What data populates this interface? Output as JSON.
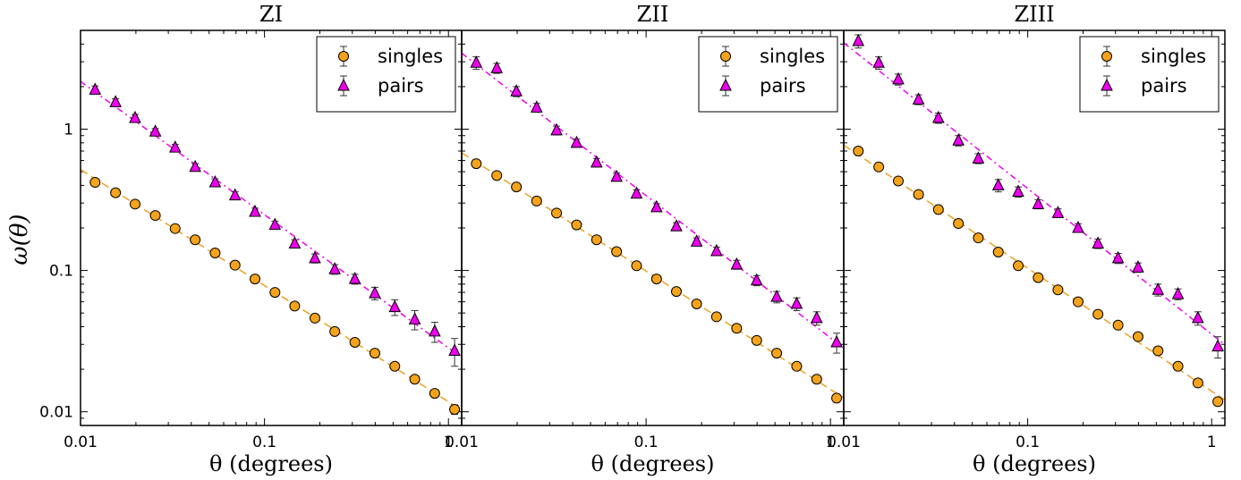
{
  "figure": {
    "ylabel": "ω(θ)",
    "xlabel": "θ (degrees)"
  },
  "colors": {
    "singles_fill": "#f5a31a",
    "pairs_fill": "#ee00ee",
    "singles_line": "#f0a020",
    "pairs_line": "#ee00ee"
  },
  "chart_data": [
    {
      "type": "scatter",
      "title": "ZI",
      "xlabel": "θ (degrees)",
      "ylabel": "ω(θ)",
      "xscale": "log",
      "yscale": "log",
      "xlim": [
        0.01,
        1.18
      ],
      "ylim": [
        0.008,
        5.0
      ],
      "xticks": [
        0.01,
        0.1,
        1
      ],
      "xtick_labels": [
        "0.01",
        "0.1",
        "1"
      ],
      "yticks": [
        0.01,
        0.1,
        1
      ],
      "ytick_labels": [
        "0.01",
        "0.1",
        "1"
      ],
      "legend": "top-right",
      "series": [
        {
          "name": "singles",
          "marker": "circle",
          "x": [
            0.012,
            0.0155,
            0.0198,
            0.0255,
            0.0327,
            0.042,
            0.0539,
            0.0692,
            0.0888,
            0.114,
            0.146,
            0.188,
            0.241,
            0.31,
            0.398,
            0.511,
            0.656,
            0.842,
            1.08
          ],
          "y": [
            0.42,
            0.355,
            0.295,
            0.245,
            0.198,
            0.165,
            0.133,
            0.109,
            0.087,
            0.07,
            0.056,
            0.046,
            0.037,
            0.031,
            0.026,
            0.021,
            0.017,
            0.0135,
            0.0104
          ],
          "yerr": [
            0.01,
            0.008,
            0.006,
            0.005,
            0.004,
            0.003,
            0.003,
            0.002,
            0.002,
            0.0015,
            0.0012,
            0.001,
            0.0008,
            0.0007,
            0.0006,
            0.0005,
            0.0005,
            0.0006,
            0.0008
          ]
        },
        {
          "name": "pairs",
          "marker": "triangle",
          "x": [
            0.012,
            0.0155,
            0.0198,
            0.0255,
            0.0327,
            0.042,
            0.0539,
            0.0692,
            0.0888,
            0.114,
            0.146,
            0.188,
            0.241,
            0.31,
            0.398,
            0.511,
            0.656,
            0.842,
            1.08
          ],
          "y": [
            1.9,
            1.55,
            1.2,
            0.96,
            0.74,
            0.54,
            0.42,
            0.34,
            0.26,
            0.21,
            0.155,
            0.122,
            0.102,
            0.087,
            0.069,
            0.055,
            0.045,
            0.037,
            0.027
          ],
          "yerr": [
            0.12,
            0.09,
            0.07,
            0.05,
            0.04,
            0.03,
            0.025,
            0.02,
            0.016,
            0.013,
            0.01,
            0.009,
            0.008,
            0.007,
            0.007,
            0.007,
            0.007,
            0.006,
            0.006
          ]
        }
      ]
    },
    {
      "type": "scatter",
      "title": "ZII",
      "xlabel": "θ (degrees)",
      "xscale": "log",
      "yscale": "log",
      "xlim": [
        0.01,
        1.18
      ],
      "ylim": [
        0.008,
        5.0
      ],
      "xticks": [
        0.01,
        0.1,
        1
      ],
      "xtick_labels": [
        "0.01",
        "0.1",
        "1"
      ],
      "legend": "top-right",
      "series": [
        {
          "name": "singles",
          "marker": "circle",
          "x": [
            0.012,
            0.0155,
            0.0198,
            0.0255,
            0.0327,
            0.042,
            0.0539,
            0.0692,
            0.0888,
            0.114,
            0.146,
            0.188,
            0.241,
            0.31,
            0.398,
            0.511,
            0.656,
            0.842,
            1.08
          ],
          "y": [
            0.57,
            0.47,
            0.39,
            0.31,
            0.255,
            0.21,
            0.165,
            0.136,
            0.108,
            0.087,
            0.071,
            0.058,
            0.047,
            0.039,
            0.032,
            0.026,
            0.021,
            0.017,
            0.0125
          ],
          "yerr": [
            0.012,
            0.01,
            0.008,
            0.006,
            0.005,
            0.004,
            0.003,
            0.003,
            0.002,
            0.0018,
            0.0015,
            0.0012,
            0.001,
            0.0008,
            0.0007,
            0.0006,
            0.0005,
            0.0006,
            0.0008
          ]
        },
        {
          "name": "pairs",
          "marker": "triangle",
          "x": [
            0.012,
            0.0155,
            0.0198,
            0.0255,
            0.0327,
            0.042,
            0.0539,
            0.0692,
            0.0888,
            0.114,
            0.146,
            0.188,
            0.241,
            0.31,
            0.398,
            0.511,
            0.656,
            0.842,
            1.08
          ],
          "y": [
            2.95,
            2.7,
            1.85,
            1.42,
            0.98,
            0.8,
            0.58,
            0.46,
            0.35,
            0.28,
            0.205,
            0.16,
            0.137,
            0.11,
            0.085,
            0.065,
            0.058,
            0.046,
            0.031
          ],
          "yerr": [
            0.3,
            0.22,
            0.15,
            0.1,
            0.07,
            0.05,
            0.04,
            0.03,
            0.022,
            0.017,
            0.013,
            0.01,
            0.009,
            0.008,
            0.007,
            0.006,
            0.006,
            0.005,
            0.005
          ]
        }
      ]
    },
    {
      "type": "scatter",
      "title": "ZIII",
      "xlabel": "θ (degrees)",
      "xscale": "log",
      "yscale": "log",
      "xlim": [
        0.01,
        1.18
      ],
      "ylim": [
        0.008,
        5.0
      ],
      "xticks": [
        0.01,
        0.1,
        1
      ],
      "xtick_labels": [
        "0.01",
        "0.1",
        "1"
      ],
      "legend": "top-right",
      "series": [
        {
          "name": "singles",
          "marker": "circle",
          "x": [
            0.012,
            0.0155,
            0.0198,
            0.0255,
            0.0327,
            0.042,
            0.0539,
            0.0692,
            0.0888,
            0.114,
            0.146,
            0.188,
            0.241,
            0.31,
            0.398,
            0.511,
            0.656,
            0.842,
            1.08
          ],
          "y": [
            0.7,
            0.54,
            0.43,
            0.345,
            0.27,
            0.215,
            0.17,
            0.135,
            0.108,
            0.089,
            0.073,
            0.06,
            0.049,
            0.041,
            0.034,
            0.027,
            0.021,
            0.016,
            0.0118
          ],
          "yerr": [
            0.015,
            0.012,
            0.01,
            0.008,
            0.006,
            0.005,
            0.004,
            0.003,
            0.0025,
            0.002,
            0.0017,
            0.0014,
            0.0011,
            0.0009,
            0.0008,
            0.0007,
            0.0006,
            0.0006,
            0.0007
          ]
        },
        {
          "name": "pairs",
          "marker": "triangle",
          "x": [
            0.012,
            0.0155,
            0.0198,
            0.0255,
            0.0327,
            0.042,
            0.0539,
            0.0692,
            0.0888,
            0.114,
            0.146,
            0.188,
            0.241,
            0.31,
            0.398,
            0.511,
            0.656,
            0.842,
            1.08
          ],
          "y": [
            4.2,
            2.95,
            2.25,
            1.62,
            1.2,
            0.83,
            0.62,
            0.4,
            0.36,
            0.295,
            0.255,
            0.2,
            0.155,
            0.122,
            0.105,
            0.073,
            0.068,
            0.046,
            0.029
          ],
          "yerr": [
            0.45,
            0.3,
            0.2,
            0.13,
            0.1,
            0.07,
            0.05,
            0.04,
            0.03,
            0.022,
            0.018,
            0.014,
            0.012,
            0.01,
            0.008,
            0.007,
            0.006,
            0.005,
            0.005
          ]
        }
      ]
    }
  ]
}
